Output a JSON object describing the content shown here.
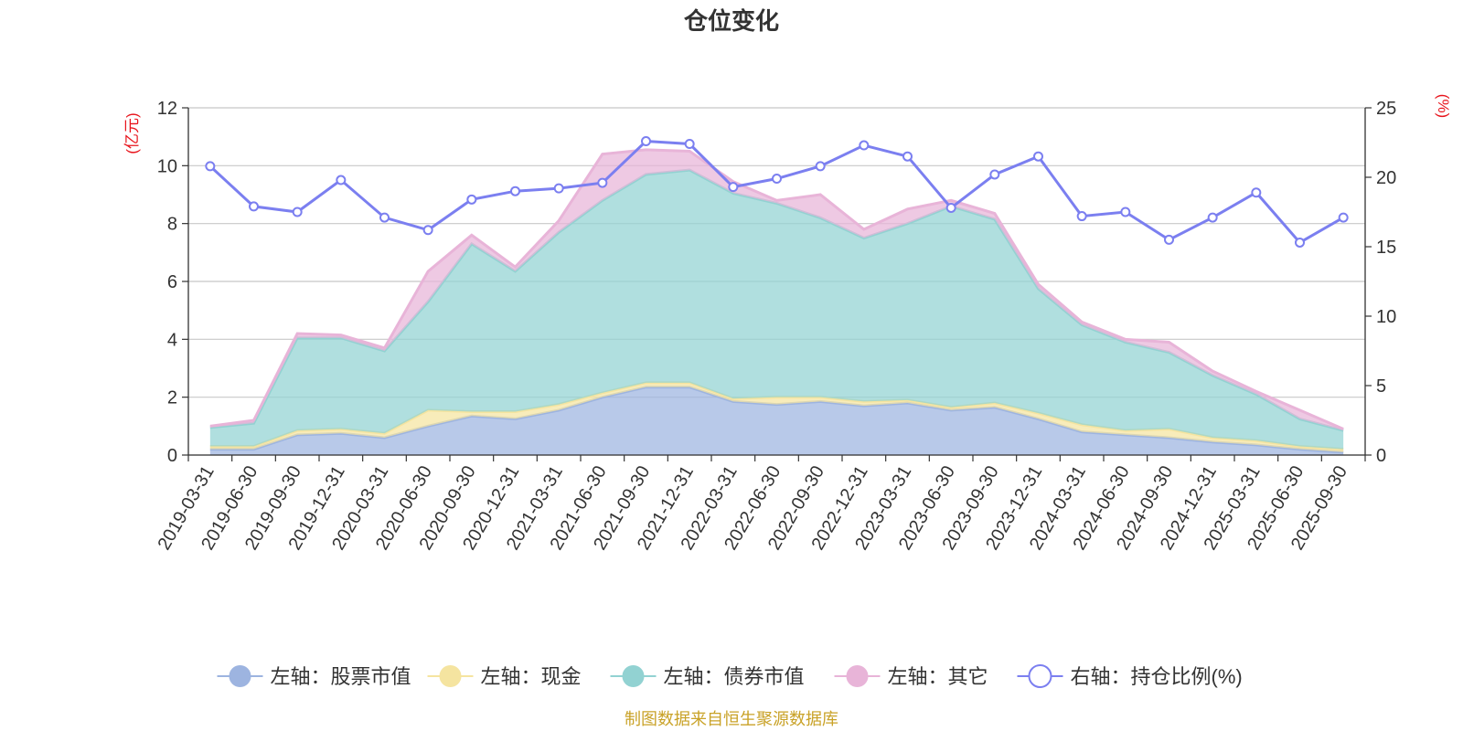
{
  "chart_data": {
    "type": "area",
    "title": "仓位变化",
    "source_note": "制图数据来自恒生聚源数据库",
    "left_axis": {
      "unit_label": "(亿元)",
      "ylim": [
        0,
        12
      ],
      "ticks": [
        0,
        2,
        4,
        6,
        8,
        10,
        12
      ]
    },
    "right_axis": {
      "unit_label": "(%)",
      "ylim": [
        0,
        25
      ],
      "ticks": [
        0,
        5,
        10,
        15,
        20,
        25
      ]
    },
    "grid": true,
    "legend_position": "bottom",
    "categories": [
      "2019-03-31",
      "2019-06-30",
      "2019-09-30",
      "2019-12-31",
      "2020-03-31",
      "2020-06-30",
      "2020-09-30",
      "2020-12-31",
      "2021-03-31",
      "2021-06-30",
      "2021-09-30",
      "2021-12-31",
      "2022-03-31",
      "2022-06-30",
      "2022-09-30",
      "2022-12-31",
      "2023-03-31",
      "2023-06-30",
      "2023-09-30",
      "2023-12-31",
      "2024-03-31",
      "2024-06-30",
      "2024-09-30",
      "2024-12-31",
      "2025-03-31",
      "2025-06-30",
      "2025-09-30"
    ],
    "series": [
      {
        "name": "左轴：股票市值",
        "axis": "left",
        "kind": "stacked-area",
        "color": "#9db4e0",
        "values": [
          0.2,
          0.2,
          0.7,
          0.75,
          0.6,
          1.0,
          1.35,
          1.25,
          1.55,
          2.0,
          2.35,
          2.35,
          1.85,
          1.75,
          1.85,
          1.7,
          1.8,
          1.55,
          1.65,
          1.25,
          0.8,
          0.7,
          0.6,
          0.45,
          0.35,
          0.2,
          0.1
        ]
      },
      {
        "name": "左轴：现金",
        "axis": "left",
        "kind": "stacked-area",
        "color": "#f5e4a0",
        "values": [
          0.1,
          0.1,
          0.15,
          0.15,
          0.15,
          0.55,
          0.15,
          0.25,
          0.2,
          0.15,
          0.15,
          0.15,
          0.1,
          0.25,
          0.15,
          0.15,
          0.1,
          0.1,
          0.15,
          0.2,
          0.25,
          0.15,
          0.3,
          0.15,
          0.15,
          0.1,
          0.1
        ]
      },
      {
        "name": "左轴：债券市值",
        "axis": "left",
        "kind": "stacked-area",
        "color": "#92d2d2",
        "values": [
          0.65,
          0.8,
          3.2,
          3.15,
          2.85,
          3.75,
          5.8,
          4.85,
          5.95,
          6.65,
          7.2,
          7.35,
          7.1,
          6.7,
          6.2,
          5.65,
          6.1,
          6.95,
          6.35,
          4.3,
          3.45,
          3.05,
          2.65,
          2.15,
          1.6,
          0.95,
          0.65
        ]
      },
      {
        "name": "左轴：其它",
        "axis": "left",
        "kind": "stacked-area",
        "color": "#e8b4d8",
        "values": [
          0.05,
          0.1,
          0.15,
          0.1,
          0.1,
          1.05,
          0.3,
          0.15,
          0.4,
          1.6,
          0.85,
          0.65,
          0.4,
          0.1,
          0.8,
          0.3,
          0.5,
          0.2,
          0.2,
          0.15,
          0.1,
          0.1,
          0.35,
          0.15,
          0.1,
          0.3,
          0.05
        ]
      },
      {
        "name": "右轴：持仓比例(%)",
        "axis": "right",
        "kind": "line",
        "color": "#7b7ff0",
        "values": [
          20.8,
          17.9,
          17.5,
          19.8,
          17.1,
          16.2,
          18.4,
          19.0,
          19.2,
          19.6,
          22.6,
          22.4,
          19.3,
          19.9,
          20.8,
          22.3,
          21.5,
          17.8,
          20.2,
          21.5,
          17.2,
          17.5,
          15.5,
          17.1,
          18.9,
          15.3,
          17.1
        ]
      }
    ]
  }
}
